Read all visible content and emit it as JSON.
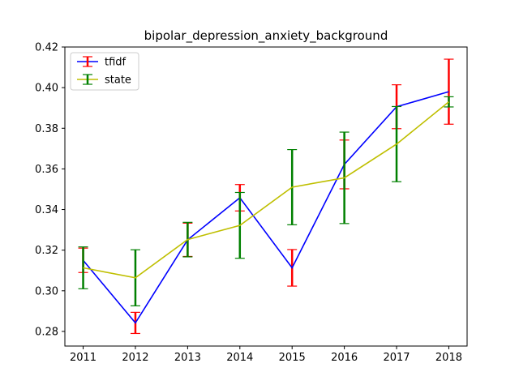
{
  "chart_data": {
    "type": "line",
    "title": "bipolar_depression_anxiety_background",
    "xlabel": "",
    "ylabel": "",
    "x": [
      2011,
      2012,
      2013,
      2014,
      2015,
      2016,
      2017,
      2018
    ],
    "x_tick_labels": [
      "2011",
      "2012",
      "2013",
      "2014",
      "2015",
      "2016",
      "2017",
      "2018"
    ],
    "y_ticks": [
      0.28,
      0.3,
      0.32,
      0.34,
      0.36,
      0.38,
      0.4,
      0.42
    ],
    "y_tick_labels": [
      "0.28",
      "0.30",
      "0.32",
      "0.34",
      "0.36",
      "0.38",
      "0.40",
      "0.42"
    ],
    "xlim": [
      2010.65,
      2018.35
    ],
    "ylim": [
      0.2728,
      0.42
    ],
    "legend_position": "upper-left",
    "grid": false,
    "series": [
      {
        "name": "tfidf",
        "color": "#0000ff",
        "error_color": "#ff0000",
        "values": [
          0.315,
          0.2842,
          0.3251,
          0.3458,
          0.3113,
          0.3622,
          0.3906,
          0.398
        ],
        "errors": [
          0.006,
          0.0052,
          0.0082,
          0.0065,
          0.009,
          0.012,
          0.0108,
          0.016
        ]
      },
      {
        "name": "state",
        "color": "#bfbf00",
        "error_color": "#008000",
        "values": [
          0.3113,
          0.3064,
          0.3252,
          0.3322,
          0.351,
          0.3556,
          0.3722,
          0.393
        ],
        "errors": [
          0.0103,
          0.0138,
          0.0085,
          0.0162,
          0.0185,
          0.0225,
          0.0185,
          0.0025
        ]
      }
    ]
  }
}
